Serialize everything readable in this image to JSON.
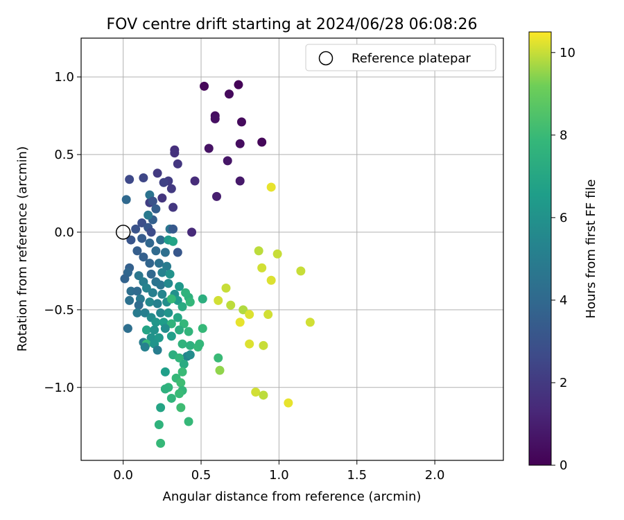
{
  "chart_data": {
    "type": "scatter",
    "title": "FOV centre drift starting at 2024/06/28 06:08:26",
    "xlabel": "Angular distance from reference (arcmin)",
    "ylabel": "Rotation from reference (arcmin)",
    "xlim": [
      -0.27,
      2.44
    ],
    "ylim": [
      -1.47,
      1.25
    ],
    "xticks": [
      0.0,
      0.5,
      1.0,
      1.5,
      2.0
    ],
    "xtick_labels": [
      "0.0",
      "0.5",
      "1.0",
      "1.5",
      "2.0"
    ],
    "yticks": [
      -1.0,
      -0.5,
      0.0,
      0.5,
      1.0
    ],
    "ytick_labels": [
      "−1.0",
      "−0.5",
      "0.0",
      "0.5",
      "1.0"
    ],
    "grid": true,
    "legend": {
      "placement": "upper right",
      "entries": [
        "Reference platepar"
      ]
    },
    "reference_point": {
      "label": "Reference platepar",
      "x": 0.0,
      "y": 0.0
    },
    "colorbar": {
      "label": "Hours from first FF file",
      "colormap": "viridis",
      "range": [
        0,
        10.5
      ],
      "ticks": [
        0,
        2,
        4,
        6,
        8,
        10
      ],
      "tick_labels": [
        "0",
        "2",
        "4",
        "6",
        "8",
        "10"
      ]
    },
    "points": [
      {
        "x": 0.52,
        "y": 0.94,
        "c": 0.2
      },
      {
        "x": 0.68,
        "y": 0.89,
        "c": 0.3
      },
      {
        "x": 0.74,
        "y": 0.95,
        "c": 0.1
      },
      {
        "x": 0.59,
        "y": 0.75,
        "c": 0.4
      },
      {
        "x": 0.59,
        "y": 0.73,
        "c": 0.5
      },
      {
        "x": 0.76,
        "y": 0.71,
        "c": 0.3
      },
      {
        "x": 0.89,
        "y": 0.58,
        "c": 0.2
      },
      {
        "x": 0.75,
        "y": 0.57,
        "c": 0.4
      },
      {
        "x": 0.55,
        "y": 0.54,
        "c": 0.6
      },
      {
        "x": 0.67,
        "y": 0.46,
        "c": 0.7
      },
      {
        "x": 0.75,
        "y": 0.33,
        "c": 0.8
      },
      {
        "x": 0.6,
        "y": 0.23,
        "c": 1.0
      },
      {
        "x": 0.33,
        "y": 0.53,
        "c": 1.6
      },
      {
        "x": 0.33,
        "y": 0.51,
        "c": 1.7
      },
      {
        "x": 0.35,
        "y": 0.44,
        "c": 1.9
      },
      {
        "x": 0.22,
        "y": 0.38,
        "c": 2.0
      },
      {
        "x": 0.46,
        "y": 0.33,
        "c": 1.5
      },
      {
        "x": 0.29,
        "y": 0.33,
        "c": 2.1
      },
      {
        "x": 0.26,
        "y": 0.32,
        "c": 2.3
      },
      {
        "x": 0.13,
        "y": 0.35,
        "c": 2.5
      },
      {
        "x": 0.04,
        "y": 0.34,
        "c": 2.6
      },
      {
        "x": 0.31,
        "y": 0.28,
        "c": 2.0
      },
      {
        "x": 0.25,
        "y": 0.22,
        "c": 1.8
      },
      {
        "x": 0.17,
        "y": 0.19,
        "c": 2.2
      },
      {
        "x": 0.32,
        "y": 0.16,
        "c": 1.9
      },
      {
        "x": 0.02,
        "y": 0.21,
        "c": 4.0
      },
      {
        "x": 0.17,
        "y": 0.24,
        "c": 4.5
      },
      {
        "x": 0.19,
        "y": 0.2,
        "c": 3.0
      },
      {
        "x": 0.21,
        "y": 0.15,
        "c": 3.5
      },
      {
        "x": 0.19,
        "y": 0.08,
        "c": 3.6
      },
      {
        "x": 0.16,
        "y": 0.11,
        "c": 4.8
      },
      {
        "x": 0.12,
        "y": 0.06,
        "c": 2.8
      },
      {
        "x": 0.16,
        "y": 0.03,
        "c": 3.2
      },
      {
        "x": 0.08,
        "y": 0.02,
        "c": 3.0
      },
      {
        "x": 0.18,
        "y": 0.0,
        "c": 2.7
      },
      {
        "x": 0.3,
        "y": 0.02,
        "c": 4.6
      },
      {
        "x": 0.32,
        "y": 0.02,
        "c": 3.3
      },
      {
        "x": 0.44,
        "y": 0.0,
        "c": 1.4
      },
      {
        "x": 0.05,
        "y": -0.05,
        "c": 3.1
      },
      {
        "x": 0.12,
        "y": -0.04,
        "c": 3.4
      },
      {
        "x": 0.09,
        "y": -0.12,
        "c": 3.5
      },
      {
        "x": 0.17,
        "y": -0.07,
        "c": 3.9
      },
      {
        "x": 0.24,
        "y": -0.05,
        "c": 4.2
      },
      {
        "x": 0.29,
        "y": -0.05,
        "c": 6.4
      },
      {
        "x": 0.32,
        "y": -0.06,
        "c": 6.8
      },
      {
        "x": 0.21,
        "y": -0.12,
        "c": 4.1
      },
      {
        "x": 0.13,
        "y": -0.16,
        "c": 3.6
      },
      {
        "x": 0.27,
        "y": -0.13,
        "c": 4.3
      },
      {
        "x": 0.35,
        "y": -0.13,
        "c": 3.2
      },
      {
        "x": 0.17,
        "y": -0.2,
        "c": 3.8
      },
      {
        "x": 0.23,
        "y": -0.2,
        "c": 4.4
      },
      {
        "x": 0.28,
        "y": -0.22,
        "c": 4.9
      },
      {
        "x": 0.04,
        "y": -0.23,
        "c": 3.6
      },
      {
        "x": 0.03,
        "y": -0.26,
        "c": 3.9
      },
      {
        "x": 0.01,
        "y": -0.3,
        "c": 3.7
      },
      {
        "x": 0.1,
        "y": -0.28,
        "c": 4.7
      },
      {
        "x": 0.18,
        "y": -0.27,
        "c": 4.0
      },
      {
        "x": 0.25,
        "y": -0.26,
        "c": 5.2
      },
      {
        "x": 0.3,
        "y": -0.27,
        "c": 6.0
      },
      {
        "x": 0.21,
        "y": -0.32,
        "c": 4.5
      },
      {
        "x": 0.13,
        "y": -0.32,
        "c": 5.0
      },
      {
        "x": 0.15,
        "y": -0.36,
        "c": 5.3
      },
      {
        "x": 0.24,
        "y": -0.34,
        "c": 4.6
      },
      {
        "x": 0.29,
        "y": -0.33,
        "c": 5.6
      },
      {
        "x": 0.36,
        "y": -0.35,
        "c": 6.3
      },
      {
        "x": 0.05,
        "y": -0.38,
        "c": 4.3
      },
      {
        "x": 0.09,
        "y": -0.38,
        "c": 4.1
      },
      {
        "x": 0.11,
        "y": -0.43,
        "c": 4.8
      },
      {
        "x": 0.19,
        "y": -0.39,
        "c": 5.1
      },
      {
        "x": 0.25,
        "y": -0.4,
        "c": 5.4
      },
      {
        "x": 0.33,
        "y": -0.4,
        "c": 5.9
      },
      {
        "x": 0.04,
        "y": -0.44,
        "c": 4.4
      },
      {
        "x": 0.1,
        "y": -0.47,
        "c": 4.2
      },
      {
        "x": 0.17,
        "y": -0.45,
        "c": 5.6
      },
      {
        "x": 0.22,
        "y": -0.46,
        "c": 5.2
      },
      {
        "x": 0.28,
        "y": -0.45,
        "c": 5.8
      },
      {
        "x": 0.35,
        "y": -0.44,
        "c": 6.4
      },
      {
        "x": 0.42,
        "y": -0.42,
        "c": 7.5
      },
      {
        "x": 0.31,
        "y": -0.43,
        "c": 7.9
      },
      {
        "x": 0.4,
        "y": -0.39,
        "c": 7.6
      },
      {
        "x": 0.38,
        "y": -0.48,
        "c": 7.2
      },
      {
        "x": 0.43,
        "y": -0.45,
        "c": 7.8
      },
      {
        "x": 0.51,
        "y": -0.43,
        "c": 7.4
      },
      {
        "x": 0.09,
        "y": -0.52,
        "c": 4.9
      },
      {
        "x": 0.14,
        "y": -0.52,
        "c": 5.1
      },
      {
        "x": 0.18,
        "y": -0.55,
        "c": 5.7
      },
      {
        "x": 0.24,
        "y": -0.52,
        "c": 5.5
      },
      {
        "x": 0.29,
        "y": -0.52,
        "c": 6.1
      },
      {
        "x": 0.35,
        "y": -0.55,
        "c": 7.0
      },
      {
        "x": 0.21,
        "y": -0.58,
        "c": 6.2
      },
      {
        "x": 0.26,
        "y": -0.58,
        "c": 6.5
      },
      {
        "x": 0.31,
        "y": -0.59,
        "c": 7.6
      },
      {
        "x": 0.39,
        "y": -0.59,
        "c": 7.8
      },
      {
        "x": 0.03,
        "y": -0.62,
        "c": 4.3
      },
      {
        "x": 0.15,
        "y": -0.63,
        "c": 6.9
      },
      {
        "x": 0.2,
        "y": -0.63,
        "c": 6.0
      },
      {
        "x": 0.27,
        "y": -0.62,
        "c": 5.8
      },
      {
        "x": 0.36,
        "y": -0.63,
        "c": 7.3
      },
      {
        "x": 0.42,
        "y": -0.64,
        "c": 7.7
      },
      {
        "x": 0.51,
        "y": -0.62,
        "c": 7.9
      },
      {
        "x": 0.18,
        "y": -0.68,
        "c": 6.0
      },
      {
        "x": 0.23,
        "y": -0.68,
        "c": 6.3
      },
      {
        "x": 0.31,
        "y": -0.67,
        "c": 6.6
      },
      {
        "x": 0.13,
        "y": -0.71,
        "c": 5.0
      },
      {
        "x": 0.15,
        "y": -0.72,
        "c": 7.9
      },
      {
        "x": 0.2,
        "y": -0.72,
        "c": 6.1
      },
      {
        "x": 0.38,
        "y": -0.72,
        "c": 7.6
      },
      {
        "x": 0.43,
        "y": -0.73,
        "c": 7.5
      },
      {
        "x": 0.48,
        "y": -0.74,
        "c": 7.9
      },
      {
        "x": 0.49,
        "y": -0.72,
        "c": 7.8
      },
      {
        "x": 0.14,
        "y": -0.74,
        "c": 5.2
      },
      {
        "x": 0.22,
        "y": -0.76,
        "c": 5.0
      },
      {
        "x": 0.32,
        "y": -0.79,
        "c": 7.4
      },
      {
        "x": 0.41,
        "y": -0.8,
        "c": 5.3
      },
      {
        "x": 0.36,
        "y": -0.81,
        "c": 7.7
      },
      {
        "x": 0.43,
        "y": -0.79,
        "c": 5.7
      },
      {
        "x": 0.39,
        "y": -0.85,
        "c": 7.2
      },
      {
        "x": 0.61,
        "y": -0.81,
        "c": 8.0
      },
      {
        "x": 0.27,
        "y": -0.9,
        "c": 6.6
      },
      {
        "x": 0.38,
        "y": -0.9,
        "c": 8.0
      },
      {
        "x": 0.34,
        "y": -0.94,
        "c": 7.9
      },
      {
        "x": 0.37,
        "y": -0.97,
        "c": 8.1
      },
      {
        "x": 0.29,
        "y": -1.0,
        "c": 7.7
      },
      {
        "x": 0.27,
        "y": -1.01,
        "c": 7.5
      },
      {
        "x": 0.38,
        "y": -1.02,
        "c": 7.8
      },
      {
        "x": 0.36,
        "y": -1.04,
        "c": 8.0
      },
      {
        "x": 0.31,
        "y": -1.07,
        "c": 7.7
      },
      {
        "x": 0.24,
        "y": -1.13,
        "c": 6.9
      },
      {
        "x": 0.37,
        "y": -1.13,
        "c": 8.1
      },
      {
        "x": 0.42,
        "y": -1.22,
        "c": 7.9
      },
      {
        "x": 0.23,
        "y": -1.24,
        "c": 7.6
      },
      {
        "x": 0.24,
        "y": -1.36,
        "c": 7.9
      },
      {
        "x": 0.62,
        "y": -0.89,
        "c": 9.5
      },
      {
        "x": 0.95,
        "y": 0.29,
        "c": 10.3
      },
      {
        "x": 0.87,
        "y": -0.12,
        "c": 9.9
      },
      {
        "x": 0.99,
        "y": -0.14,
        "c": 10.0
      },
      {
        "x": 0.89,
        "y": -0.23,
        "c": 10.1
      },
      {
        "x": 1.14,
        "y": -0.25,
        "c": 10.0
      },
      {
        "x": 0.95,
        "y": -0.31,
        "c": 10.2
      },
      {
        "x": 0.66,
        "y": -0.36,
        "c": 10.0
      },
      {
        "x": 0.61,
        "y": -0.44,
        "c": 10.1
      },
      {
        "x": 0.69,
        "y": -0.47,
        "c": 9.9
      },
      {
        "x": 0.77,
        "y": -0.5,
        "c": 9.8
      },
      {
        "x": 0.81,
        "y": -0.53,
        "c": 10.2
      },
      {
        "x": 0.93,
        "y": -0.53,
        "c": 10.1
      },
      {
        "x": 0.75,
        "y": -0.58,
        "c": 10.3
      },
      {
        "x": 1.2,
        "y": -0.58,
        "c": 10.1
      },
      {
        "x": 0.81,
        "y": -0.72,
        "c": 10.2
      },
      {
        "x": 0.9,
        "y": -0.73,
        "c": 10.0
      },
      {
        "x": 0.85,
        "y": -1.03,
        "c": 10.1
      },
      {
        "x": 0.9,
        "y": -1.05,
        "c": 9.9
      },
      {
        "x": 1.06,
        "y": -1.1,
        "c": 10.3
      }
    ]
  }
}
